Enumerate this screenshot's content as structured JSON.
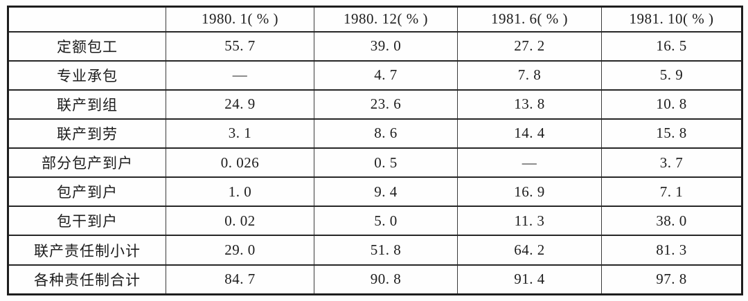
{
  "page": {
    "background_color": "#fdfdfd",
    "text_color": "#1c1c1c",
    "grid_line_color": "#262626",
    "description": "Printed statistical table of Chinese agricultural production responsibility systems, shares in percent at four dates (1980.1, 1980.12, 1981.6, 1981.10)"
  },
  "table": {
    "corner_label": "",
    "columns": [
      "1980. 1( % )",
      "1980. 12( % )",
      "1981. 6( % )",
      "1981. 10( % )"
    ],
    "rows": [
      {
        "label": "定额包工",
        "values": [
          "55. 7",
          "39. 0",
          "27. 2",
          "16. 5"
        ]
      },
      {
        "label": "专业承包",
        "values": [
          "—",
          "4. 7",
          "7. 8",
          "5. 9"
        ]
      },
      {
        "label": "联产到组",
        "values": [
          "24. 9",
          "23. 6",
          "13. 8",
          "10. 8"
        ]
      },
      {
        "label": "联产到劳",
        "values": [
          "3. 1",
          "8. 6",
          "14. 4",
          "15. 8"
        ]
      },
      {
        "label": "部分包产到户",
        "values": [
          "0. 026",
          "0. 5",
          "—",
          "3. 7"
        ]
      },
      {
        "label": "包产到户",
        "values": [
          "1. 0",
          "9. 4",
          "16. 9",
          "7. 1"
        ]
      },
      {
        "label": "包干到户",
        "values": [
          "0. 02",
          "5. 0",
          "11. 3",
          "38. 0"
        ]
      },
      {
        "label": "联产责任制小计",
        "values": [
          "29. 0",
          "51. 8",
          "64. 2",
          "81. 3"
        ]
      },
      {
        "label": "各种责任制合计",
        "values": [
          "84. 7",
          "90. 8",
          "91. 4",
          "97. 8"
        ]
      }
    ]
  },
  "chart_data": {
    "type": "table",
    "title": "",
    "columns": [
      "",
      "1980.1(%)",
      "1980.12(%)",
      "1981.6(%)",
      "1981.10(%)"
    ],
    "rows": [
      [
        "定额包工",
        55.7,
        39.0,
        27.2,
        16.5
      ],
      [
        "专业承包",
        null,
        4.7,
        7.8,
        5.9
      ],
      [
        "联产到组",
        24.9,
        23.6,
        13.8,
        10.8
      ],
      [
        "联产到劳",
        3.1,
        8.6,
        14.4,
        15.8
      ],
      [
        "部分包产到户",
        0.026,
        0.5,
        null,
        3.7
      ],
      [
        "包产到户",
        1.0,
        9.4,
        16.9,
        7.1
      ],
      [
        "包干到户",
        0.02,
        5.0,
        11.3,
        38.0
      ],
      [
        "联产责任制小计",
        29.0,
        51.8,
        64.2,
        81.3
      ],
      [
        "各种责任制合计",
        84.7,
        90.8,
        91.4,
        97.8
      ]
    ],
    "missing_value_glyph": "—",
    "layout": {
      "grid": true,
      "header_row": true,
      "row_label_column": true
    }
  }
}
